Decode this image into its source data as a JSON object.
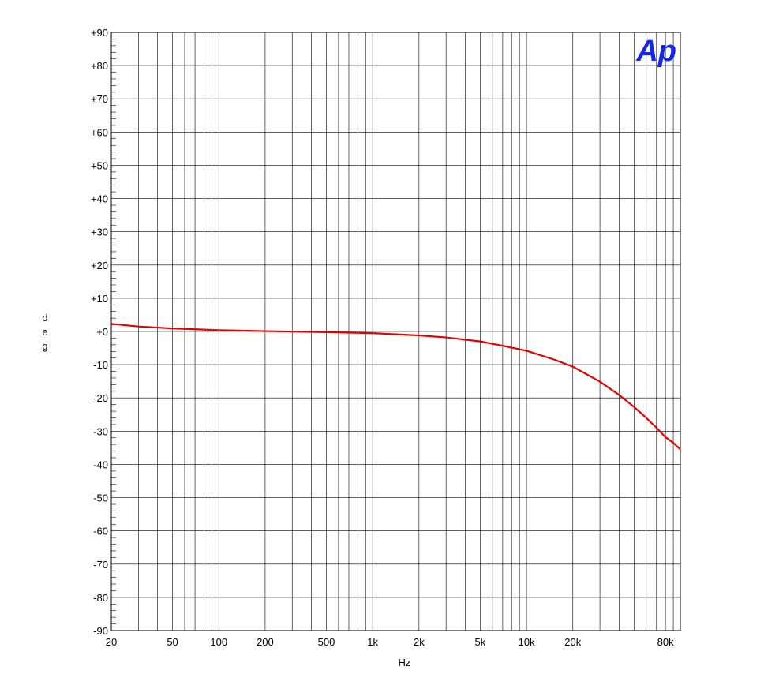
{
  "chart_data": {
    "type": "line",
    "title": "",
    "xlabel": "Hz",
    "ylabel": "deg",
    "xscale": "log",
    "xlim": [
      20,
      100000
    ],
    "ylim": [
      -90,
      90
    ],
    "grid": true,
    "x_ticks": [
      {
        "value": 20,
        "label": "20"
      },
      {
        "value": 50,
        "label": "50"
      },
      {
        "value": 100,
        "label": "100"
      },
      {
        "value": 200,
        "label": "200"
      },
      {
        "value": 500,
        "label": "500"
      },
      {
        "value": 1000,
        "label": "1k"
      },
      {
        "value": 2000,
        "label": "2k"
      },
      {
        "value": 5000,
        "label": "5k"
      },
      {
        "value": 10000,
        "label": "10k"
      },
      {
        "value": 20000,
        "label": "20k"
      },
      {
        "value": 80000,
        "label": "80k"
      }
    ],
    "y_ticks": [
      {
        "value": 90,
        "label": "+90"
      },
      {
        "value": 80,
        "label": "+80"
      },
      {
        "value": 70,
        "label": "+70"
      },
      {
        "value": 60,
        "label": "+60"
      },
      {
        "value": 50,
        "label": "+50"
      },
      {
        "value": 40,
        "label": "+40"
      },
      {
        "value": 30,
        "label": "+30"
      },
      {
        "value": 20,
        "label": "+20"
      },
      {
        "value": 10,
        "label": "+10"
      },
      {
        "value": 0,
        "label": "+0"
      },
      {
        "value": -10,
        "label": "-10"
      },
      {
        "value": -20,
        "label": "-20"
      },
      {
        "value": -30,
        "label": "-30"
      },
      {
        "value": -40,
        "label": "-40"
      },
      {
        "value": -50,
        "label": "-50"
      },
      {
        "value": -60,
        "label": "-60"
      },
      {
        "value": -70,
        "label": "-70"
      },
      {
        "value": -80,
        "label": "-80"
      },
      {
        "value": -90,
        "label": "-90"
      }
    ],
    "series": [
      {
        "color": "#e00000",
        "points": [
          [
            20,
            2.3
          ],
          [
            30,
            1.5
          ],
          [
            50,
            0.9
          ],
          [
            100,
            0.4
          ],
          [
            200,
            0.1
          ],
          [
            500,
            -0.2
          ],
          [
            1000,
            -0.5
          ],
          [
            2000,
            -1.2
          ],
          [
            3000,
            -1.8
          ],
          [
            5000,
            -3.0
          ],
          [
            7000,
            -4.3
          ],
          [
            10000,
            -5.8
          ],
          [
            15000,
            -8.4
          ],
          [
            20000,
            -10.6
          ],
          [
            30000,
            -15.1
          ],
          [
            40000,
            -19.1
          ],
          [
            50000,
            -22.7
          ],
          [
            60000,
            -26.0
          ],
          [
            70000,
            -29.0
          ],
          [
            80000,
            -31.8
          ],
          [
            90000,
            -33.5
          ],
          [
            100000,
            -35.5
          ]
        ]
      }
    ]
  },
  "logo": {
    "text": "Ap",
    "color": "#1428e6"
  }
}
